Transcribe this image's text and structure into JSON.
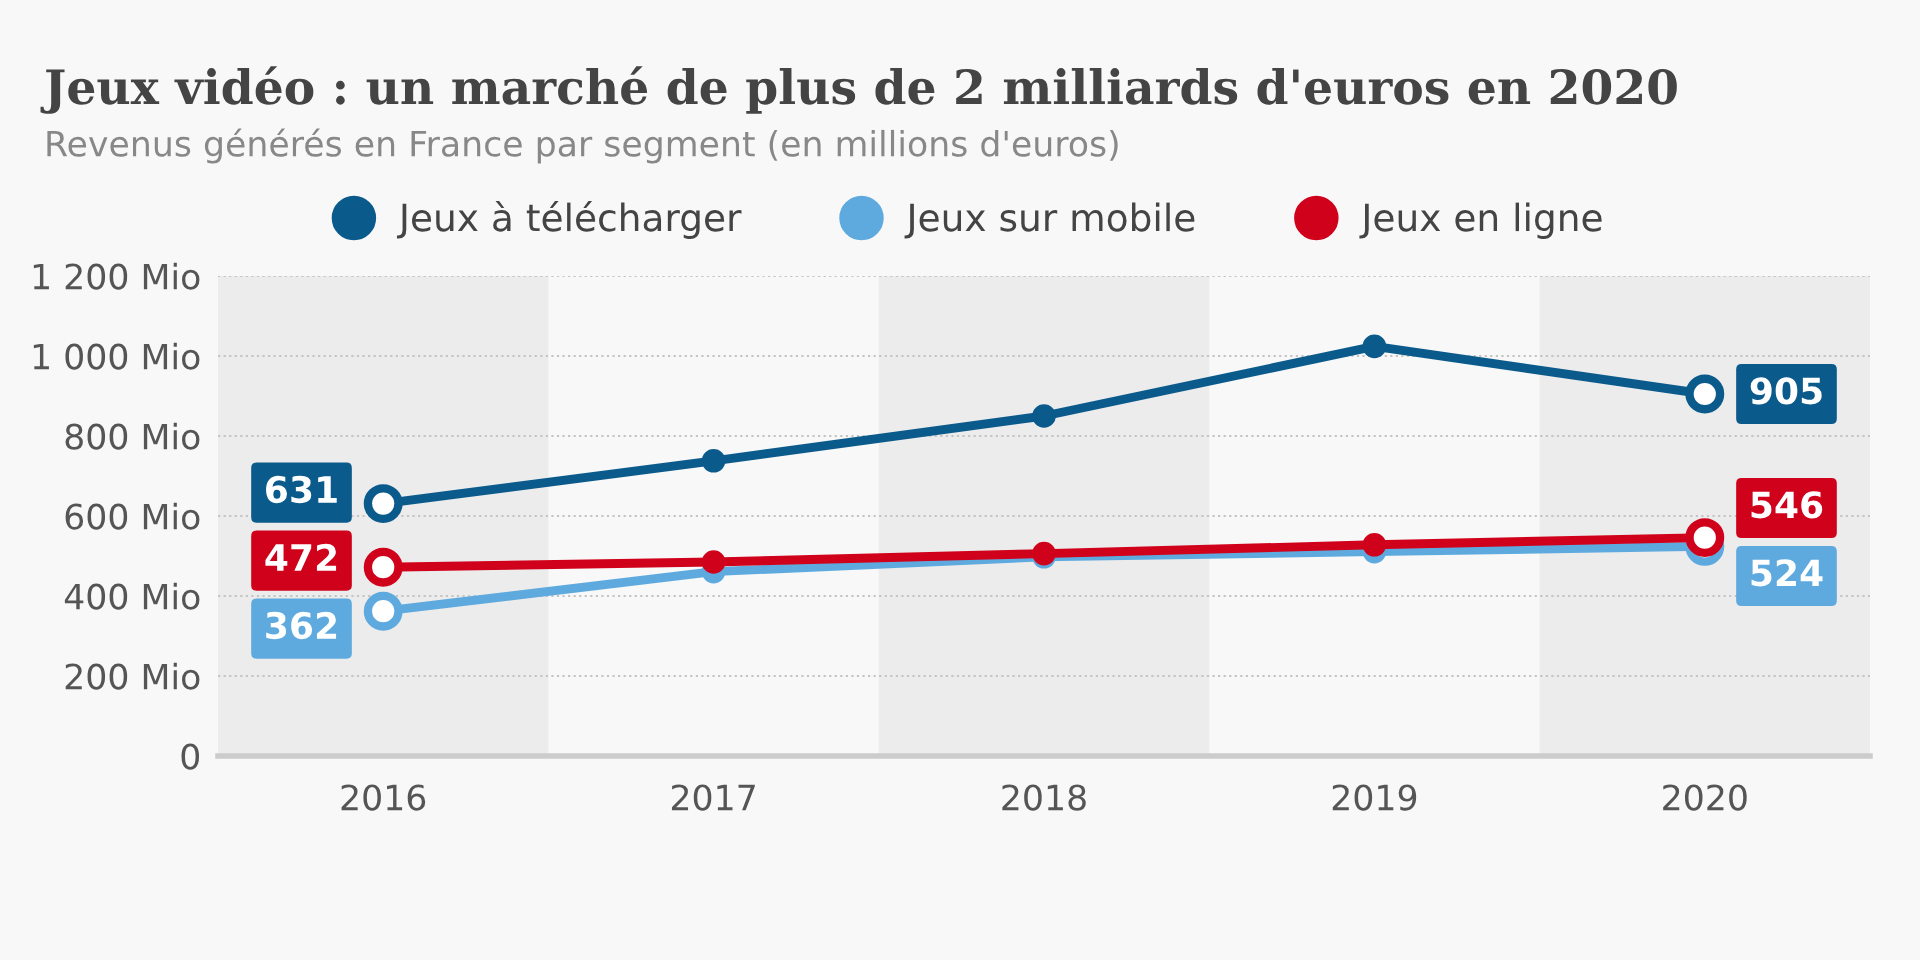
{
  "chart_data": {
    "type": "line",
    "title": "Jeux vidéo : un marché de plus de 2 milliards d'euros en 2020",
    "subtitle": "Revenus générés en France par segment (en millions d'euros)",
    "x": [
      2016,
      2017,
      2018,
      2019,
      2020
    ],
    "xlim": [
      2015.5,
      2020.5
    ],
    "xticks": [
      2016,
      2017,
      2018,
      2019,
      2020
    ],
    "ylim": [
      0,
      1200
    ],
    "yticks": [
      0,
      {
        "value": 200,
        "label": "200 Mio"
      },
      {
        "value": 400,
        "label": "400 Mio"
      },
      {
        "value": 600,
        "label": "600 Mio"
      },
      {
        "value": 800,
        "label": "800 Mio"
      },
      {
        "value": 1000,
        "label": "1 000 Mio"
      },
      {
        "value": 1200,
        "label": "1 200 Mio"
      }
    ],
    "series": [
      {
        "name": "Jeux à télécharger",
        "color": "#0b5a8c",
        "values": [
          631,
          738,
          850,
          1024,
          905
        ],
        "value_labels": [
          "631",
          null,
          null,
          null,
          "905"
        ]
      },
      {
        "name": "Jeux sur mobile",
        "color": "#5eaadf",
        "values": [
          362,
          461,
          498,
          511,
          524
        ],
        "value_labels": [
          "362",
          null,
          null,
          null,
          "524"
        ]
      },
      {
        "name": "Jeux en ligne",
        "color": "#d0021b",
        "values": [
          472,
          485,
          506,
          528,
          546
        ],
        "value_labels": [
          "472",
          null,
          null,
          null,
          "546"
        ]
      }
    ],
    "bands": [
      {
        "axis": "x",
        "from": 2015.5,
        "to": 2016.5,
        "color": "#ececec"
      },
      {
        "axis": "x",
        "from": 2017.5,
        "to": 2018.5,
        "color": "#ececec"
      },
      {
        "axis": "x",
        "from": 2019.5,
        "to": 2020.5,
        "color": "#ececec"
      }
    ],
    "grid": "y",
    "legend": "top",
    "marker": "circle",
    "line_style": "solid"
  }
}
